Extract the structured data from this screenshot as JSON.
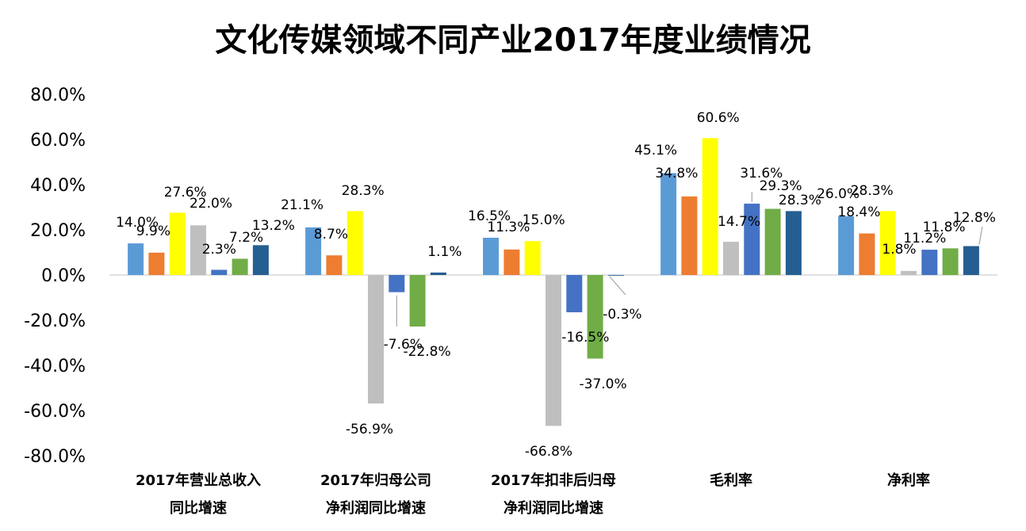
{
  "chart_data": {
    "type": "bar",
    "title": "文化传媒领域不同产业2017年度业绩情况",
    "xlabel": "",
    "ylabel": "",
    "ylim": [
      -80,
      80
    ],
    "yticks": [
      80,
      60,
      40,
      20,
      0,
      -20,
      -40,
      -60,
      -80
    ],
    "ytick_labels": [
      "80.0%",
      "60.0%",
      "40.0%",
      "20.0%",
      "0.0%",
      "-20.0%",
      "-40.0%",
      "-60.0%",
      "-80.0%"
    ],
    "grid": false,
    "legend": "none",
    "categories": [
      [
        "2017年营业总收入",
        "同比增速"
      ],
      [
        "2017年归母公司",
        "净利润同比增速"
      ],
      [
        "2017年扣非后归母",
        "净利润同比增速"
      ],
      [
        "毛利率"
      ],
      [
        "净利率"
      ]
    ],
    "series_colors": [
      "#5B9BD5",
      "#ED7D31",
      "#FFFF00",
      "#BFBFBF",
      "#4472C4",
      "#70AD47",
      "#255E91"
    ],
    "series": [
      {
        "name": "",
        "values": [
          14.0,
          21.1,
          16.5,
          45.1,
          26.0
        ]
      },
      {
        "name": "",
        "values": [
          9.9,
          8.7,
          11.3,
          34.8,
          18.4
        ]
      },
      {
        "name": "",
        "values": [
          27.6,
          28.3,
          15.0,
          60.6,
          28.3
        ]
      },
      {
        "name": "",
        "values": [
          22.0,
          -56.9,
          -66.8,
          14.7,
          1.8
        ]
      },
      {
        "name": "",
        "values": [
          2.3,
          -7.6,
          -16.5,
          31.6,
          11.2
        ]
      },
      {
        "name": "",
        "values": [
          7.2,
          -22.8,
          -37.0,
          29.3,
          11.8
        ]
      },
      {
        "name": "",
        "values": [
          13.2,
          1.1,
          -0.3,
          28.3,
          12.8
        ]
      }
    ],
    "data_labels": [
      [
        "14.0%",
        "9.9%",
        "27.6%",
        "22.0%",
        "2.3%",
        "7.2%",
        "13.2%"
      ],
      [
        "21.1%",
        "8.7%",
        "28.3%",
        "-56.9%",
        "-7.6%",
        "-22.8%",
        "1.1%"
      ],
      [
        "16.5%",
        "11.3%",
        "15.0%",
        "-66.8%",
        "-16.5%",
        "-37.0%",
        "-0.3%"
      ],
      [
        "45.1%",
        "34.8%",
        "60.6%",
        "14.7%",
        "31.6%",
        "29.3%",
        "28.3%"
      ],
      [
        "26.0%",
        "18.4%",
        "28.3%",
        "1.8%",
        "11.2%",
        "11.8%",
        "12.8%"
      ]
    ]
  }
}
